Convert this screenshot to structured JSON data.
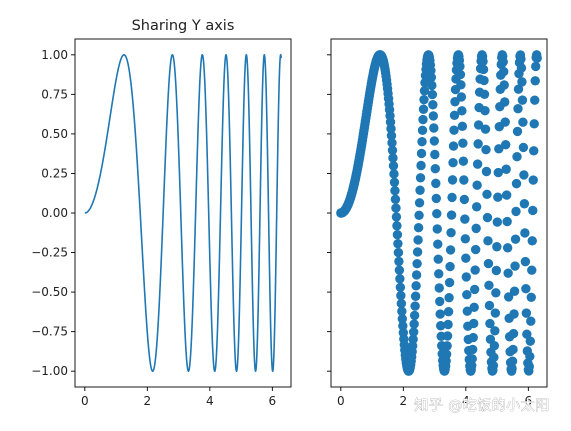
{
  "chart_data": [
    {
      "type": "line",
      "title": "Sharing Y axis",
      "series": [
        {
          "function": "y = sin(x^2)",
          "x_range": [
            0,
            6.283
          ],
          "color": "#1f77b4"
        }
      ],
      "xlim": [
        -0.314,
        6.597
      ],
      "ylim": [
        -1.1,
        1.1
      ],
      "xticks": [
        0,
        2,
        4,
        6
      ],
      "xtick_labels": [
        "0",
        "2",
        "4",
        "6"
      ],
      "yticks": [
        1.0,
        0.75,
        0.5,
        0.25,
        0.0,
        -0.25,
        -0.5,
        -0.75,
        -1.0
      ],
      "ytick_labels": [
        "1.00",
        "0.75",
        "0.50",
        "0.25",
        "0.00",
        "−0.25",
        "−0.50",
        "−0.75",
        "−1.00"
      ],
      "sharey": true
    },
    {
      "type": "scatter",
      "title": "",
      "series": [
        {
          "function": "y = sin(x^2)",
          "x_range": [
            0,
            6.283
          ],
          "points": 400,
          "color": "#1f77b4"
        }
      ],
      "xlim": [
        -0.314,
        6.597
      ],
      "ylim": [
        -1.1,
        1.1
      ],
      "xticks": [
        0,
        2,
        4,
        6
      ],
      "xtick_labels": [
        "0",
        "2",
        "4",
        "6"
      ],
      "yticks": [
        1.0,
        0.75,
        0.5,
        0.25,
        0.0,
        -0.25,
        -0.5,
        -0.75,
        -1.0
      ],
      "ytick_labels": [],
      "sharey": true
    }
  ],
  "watermark": "知乎 @吃饭的小太阳"
}
